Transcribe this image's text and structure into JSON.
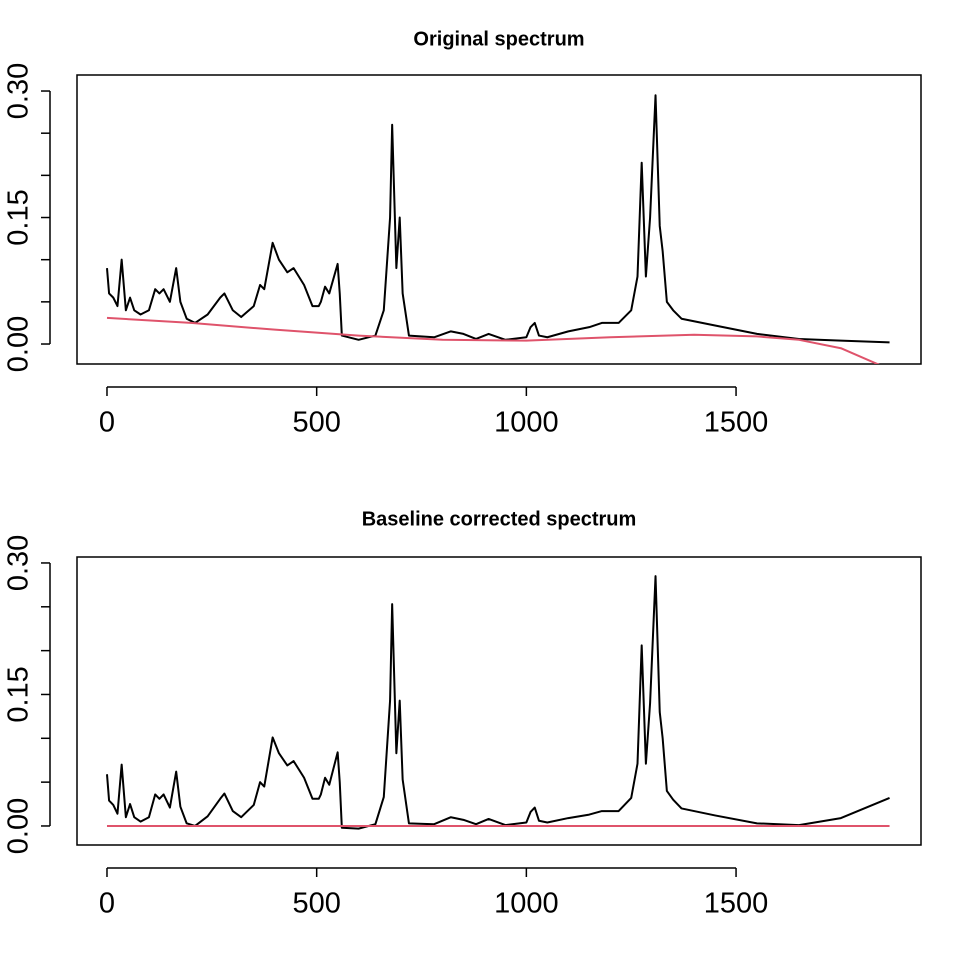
{
  "chart_data": [
    {
      "type": "line",
      "title": "Original spectrum",
      "x": [
        0,
        5,
        15,
        25,
        35,
        45,
        55,
        65,
        80,
        100,
        115,
        125,
        135,
        150,
        165,
        175,
        190,
        210,
        240,
        270,
        280,
        300,
        320,
        350,
        365,
        375,
        395,
        410,
        430,
        445,
        470,
        490,
        505,
        510,
        520,
        530,
        550,
        555,
        560,
        600,
        640,
        660,
        675,
        680,
        690,
        698,
        705,
        720,
        780,
        820,
        850,
        880,
        910,
        950,
        1000,
        1010,
        1020,
        1030,
        1050,
        1100,
        1150,
        1180,
        1220,
        1250,
        1265,
        1275,
        1285,
        1295,
        1308,
        1318,
        1325,
        1335,
        1350,
        1370,
        1450,
        1550,
        1650,
        1750,
        1866
      ],
      "series": [
        {
          "color": "#000000",
          "values": [
            0.09,
            0.06,
            0.055,
            0.045,
            0.1,
            0.04,
            0.055,
            0.04,
            0.035,
            0.04,
            0.065,
            0.06,
            0.065,
            0.05,
            0.09,
            0.05,
            0.03,
            0.025,
            0.035,
            0.055,
            0.06,
            0.04,
            0.032,
            0.045,
            0.07,
            0.065,
            0.12,
            0.1,
            0.085,
            0.09,
            0.07,
            0.045,
            0.045,
            0.05,
            0.068,
            0.06,
            0.095,
            0.06,
            0.01,
            0.005,
            0.01,
            0.04,
            0.15,
            0.26,
            0.09,
            0.15,
            0.06,
            0.01,
            0.008,
            0.015,
            0.012,
            0.006,
            0.012,
            0.005,
            0.008,
            0.02,
            0.025,
            0.01,
            0.008,
            0.015,
            0.02,
            0.025,
            0.025,
            0.04,
            0.08,
            0.215,
            0.08,
            0.15,
            0.295,
            0.14,
            0.11,
            0.05,
            0.04,
            0.03,
            0.022,
            0.012,
            0.006,
            0.004,
            0.002
          ]
        },
        {
          "color": "#DF536B",
          "x": [
            0,
            200,
            400,
            600,
            800,
            1000,
            1200,
            1400,
            1550,
            1650,
            1750,
            1866
          ],
          "values": [
            0.031,
            0.025,
            0.017,
            0.01,
            0.005,
            0.004,
            0.008,
            0.011,
            0.009,
            0.005,
            -0.005,
            -0.03
          ]
        }
      ],
      "xlim": [
        -71.5,
        1941
      ],
      "ylim": [
        -0.0237,
        0.319
      ],
      "xticks": [
        0,
        500,
        1000,
        1500
      ],
      "yticks": [
        {
          "value": 0,
          "label": "0.00"
        },
        0.15,
        {
          "value": 0.3,
          "label": "0.30"
        }
      ],
      "yminor_ticks": [
        0.05,
        0.1,
        0.2,
        0.25
      ]
    },
    {
      "type": "line",
      "title": "Baseline corrected spectrum",
      "x": [
        0,
        5,
        15,
        25,
        35,
        45,
        55,
        65,
        80,
        100,
        115,
        125,
        135,
        150,
        165,
        175,
        190,
        210,
        240,
        270,
        280,
        300,
        320,
        350,
        365,
        375,
        395,
        410,
        430,
        445,
        470,
        490,
        505,
        510,
        520,
        530,
        550,
        555,
        560,
        600,
        640,
        660,
        675,
        680,
        690,
        698,
        705,
        720,
        780,
        820,
        850,
        880,
        910,
        950,
        1000,
        1010,
        1020,
        1030,
        1050,
        1100,
        1150,
        1180,
        1220,
        1250,
        1265,
        1275,
        1285,
        1295,
        1308,
        1318,
        1325,
        1335,
        1350,
        1370,
        1450,
        1550,
        1650,
        1750,
        1866
      ],
      "series": [
        {
          "color": "#000000",
          "values": [
            0.059,
            0.029,
            0.024,
            0.014,
            0.07,
            0.01,
            0.025,
            0.01,
            0.005,
            0.01,
            0.036,
            0.031,
            0.036,
            0.021,
            0.062,
            0.022,
            0.003,
            0.0,
            0.011,
            0.031,
            0.037,
            0.017,
            0.01,
            0.024,
            0.05,
            0.045,
            0.101,
            0.083,
            0.069,
            0.074,
            0.055,
            0.031,
            0.031,
            0.036,
            0.055,
            0.047,
            0.084,
            0.05,
            -0.002,
            -0.003,
            0.002,
            0.033,
            0.143,
            0.253,
            0.083,
            0.143,
            0.053,
            0.003,
            0.002,
            0.01,
            0.007,
            0.002,
            0.008,
            0.001,
            0.004,
            0.016,
            0.021,
            0.006,
            0.004,
            0.009,
            0.013,
            0.017,
            0.017,
            0.032,
            0.071,
            0.206,
            0.071,
            0.14,
            0.285,
            0.13,
            0.1,
            0.04,
            0.03,
            0.02,
            0.012,
            0.003,
            0.001,
            0.009,
            0.032
          ]
        },
        {
          "color": "#DF536B",
          "x": [
            0,
            1866
          ],
          "values": [
            0,
            0
          ]
        }
      ],
      "xlim": [
        -71.5,
        1941
      ],
      "ylim": [
        -0.0217,
        0.3068
      ],
      "xticks": [
        0,
        500,
        1000,
        1500
      ],
      "yticks": [
        {
          "value": 0,
          "label": "0.00"
        },
        0.15,
        {
          "value": 0.3,
          "label": "0.30"
        }
      ],
      "yminor_ticks": [
        0.05,
        0.1,
        0.2,
        0.25
      ]
    }
  ]
}
